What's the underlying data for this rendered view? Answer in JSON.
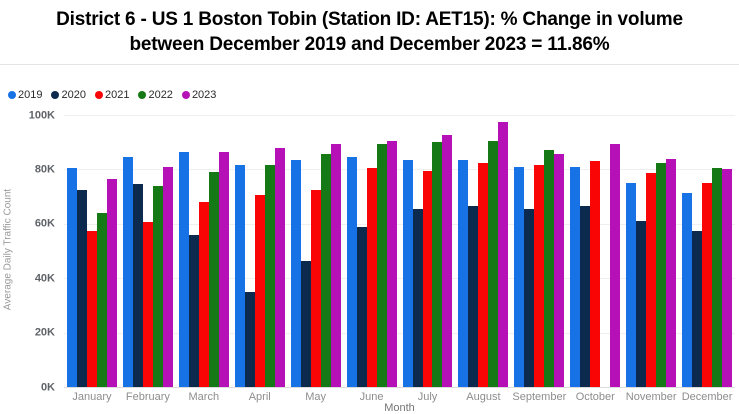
{
  "header": {
    "title_lines": [
      "District 6 - US 1 Boston Tobin (Station ID: AET15): % Change in volume",
      "between December 2019 and December 2023 = 11.86%"
    ]
  },
  "chart_data": {
    "type": "bar",
    "title": "District 6 - US 1 Boston Tobin (Station ID: AET15): % Change in volume between December 2019 and December 2023 = 11.86%",
    "xlabel": "Month",
    "ylabel": "Average Daily Traffic Count",
    "ylim": [
      0,
      100
    ],
    "y_unit": "thousands",
    "yticks": [
      "100K",
      "80K",
      "60K",
      "40K",
      "20K",
      "0K"
    ],
    "legend_position": "top-left",
    "grid": true,
    "categories": [
      "January",
      "February",
      "March",
      "April",
      "May",
      "June",
      "July",
      "August",
      "September",
      "October",
      "November",
      "December"
    ],
    "series": [
      {
        "name": "2019",
        "color": "#1772e6",
        "values": [
          80.5,
          84.5,
          86.5,
          81.5,
          83.5,
          84.5,
          83.5,
          83.5,
          81,
          81,
          75,
          71.5
        ]
      },
      {
        "name": "2020",
        "color": "#0c2a4d",
        "values": [
          72.5,
          74.5,
          56,
          35,
          46.5,
          59,
          65.5,
          66.5,
          65.5,
          66.5,
          61,
          57.5
        ]
      },
      {
        "name": "2021",
        "color": "#fa0505",
        "values": [
          57.5,
          60.5,
          68,
          70.5,
          72.5,
          80.5,
          79.5,
          82.5,
          81.5,
          83,
          78.5,
          75
        ]
      },
      {
        "name": "2022",
        "color": "#157a15",
        "values": [
          64,
          74,
          79,
          81.5,
          85.5,
          89.5,
          90,
          90.5,
          87,
          null,
          82.5,
          80.5
        ]
      },
      {
        "name": "2023",
        "color": "#b611b6",
        "values": [
          76.5,
          81,
          86.5,
          88,
          89.5,
          90.5,
          92.5,
          97.5,
          85.5,
          89.5,
          84,
          80
        ]
      }
    ]
  }
}
